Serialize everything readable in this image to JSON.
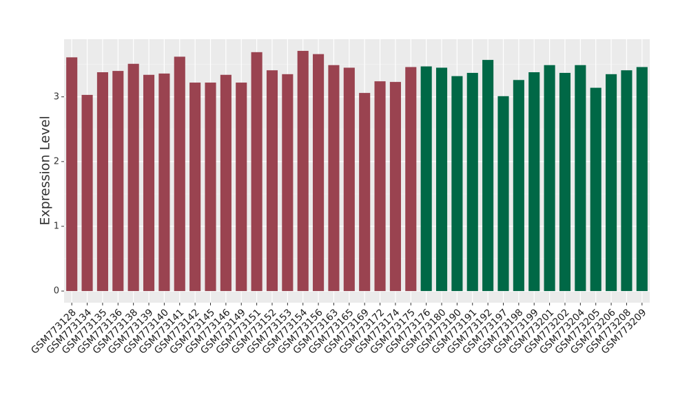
{
  "chart_data": {
    "type": "bar",
    "y_label": "Expression Level",
    "categories": [
      "GSM773128",
      "GSM773134",
      "GSM773135",
      "GSM773136",
      "GSM773138",
      "GSM773139",
      "GSM773140",
      "GSM773141",
      "GSM773142",
      "GSM773145",
      "GSM773146",
      "GSM773149",
      "GSM773151",
      "GSM773152",
      "GSM773153",
      "GSM773154",
      "GSM773156",
      "GSM773163",
      "GSM773165",
      "GSM773169",
      "GSM773172",
      "GSM773174",
      "GSM773175",
      "GSM773176",
      "GSM773180",
      "GSM773190",
      "GSM773191",
      "GSM773192",
      "GSM773197",
      "GSM773198",
      "GSM773199",
      "GSM773201",
      "GSM773202",
      "GSM773204",
      "GSM773205",
      "GSM773206",
      "GSM773208",
      "GSM773209"
    ],
    "values": [
      3.61,
      3.03,
      3.38,
      3.4,
      3.51,
      3.34,
      3.36,
      3.62,
      3.22,
      3.22,
      3.34,
      3.22,
      3.69,
      3.41,
      3.35,
      3.71,
      3.66,
      3.49,
      3.45,
      3.06,
      3.24,
      3.23,
      3.46,
      3.47,
      3.45,
      3.32,
      3.37,
      3.57,
      3.01,
      3.26,
      3.38,
      3.49,
      3.37,
      3.49,
      3.14,
      3.35,
      3.41,
      3.46
    ],
    "colors": [
      "#9a4350",
      "#9a4350",
      "#9a4350",
      "#9a4350",
      "#9a4350",
      "#9a4350",
      "#9a4350",
      "#9a4350",
      "#9a4350",
      "#9a4350",
      "#9a4350",
      "#9a4350",
      "#9a4350",
      "#9a4350",
      "#9a4350",
      "#9a4350",
      "#9a4350",
      "#9a4350",
      "#9a4350",
      "#9a4350",
      "#9a4350",
      "#9a4350",
      "#9a4350",
      "#006846",
      "#006846",
      "#006846",
      "#006846",
      "#006846",
      "#006846",
      "#006846",
      "#006846",
      "#006846",
      "#006846",
      "#006846",
      "#006846",
      "#006846",
      "#006846",
      "#006846"
    ],
    "ylim": [
      -0.18,
      3.89
    ],
    "yticks": [
      0,
      1,
      2,
      3
    ],
    "grid": true
  }
}
